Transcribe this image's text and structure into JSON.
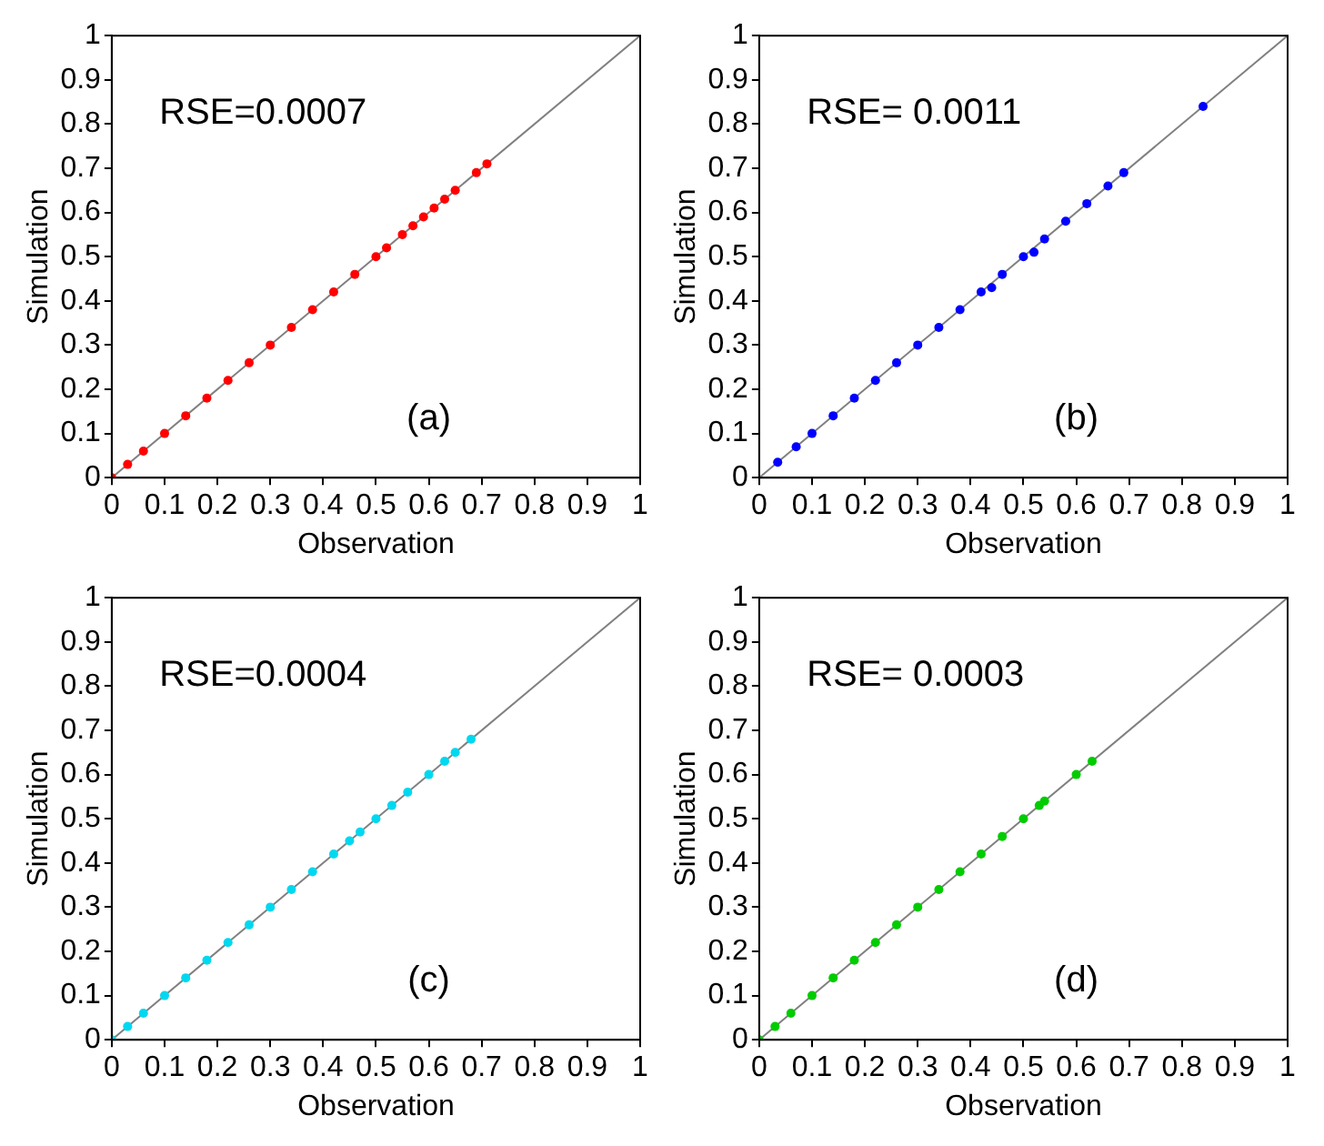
{
  "chart_data": [
    {
      "type": "scatter",
      "xlabel": "Observation",
      "ylabel": "Simulation",
      "annotations": [
        "RSE=0.0007",
        "(a)"
      ],
      "xlim": [
        0,
        1
      ],
      "ylim": [
        0,
        1
      ],
      "xticks": [
        0,
        0.1,
        0.2,
        0.3,
        0.4,
        0.5,
        0.6,
        0.7,
        0.8,
        0.9,
        1
      ],
      "yticks": [
        0,
        0.1,
        0.2,
        0.3,
        0.4,
        0.5,
        0.6,
        0.7,
        0.8,
        0.9,
        1
      ],
      "grid": false,
      "legend": false,
      "series": [
        {
          "type": "line",
          "marker": "none",
          "color": "#808080",
          "x": [
            0,
            1
          ],
          "values": [
            0,
            1
          ]
        },
        {
          "marker": "circle",
          "color": "#ff0000",
          "x": [
            0,
            0.03,
            0.06,
            0.1,
            0.14,
            0.18,
            0.22,
            0.26,
            0.3,
            0.34,
            0.38,
            0.42,
            0.46,
            0.5,
            0.52,
            0.55,
            0.57,
            0.59,
            0.61,
            0.63,
            0.65,
            0.69,
            0.71
          ],
          "values": [
            0,
            0.03,
            0.06,
            0.1,
            0.14,
            0.18,
            0.22,
            0.26,
            0.3,
            0.34,
            0.38,
            0.42,
            0.46,
            0.5,
            0.52,
            0.55,
            0.57,
            0.59,
            0.61,
            0.63,
            0.65,
            0.69,
            0.71
          ]
        }
      ]
    },
    {
      "type": "scatter",
      "xlabel": "Observation",
      "ylabel": "Simulation",
      "annotations": [
        "RSE= 0.0011",
        "(b)"
      ],
      "xlim": [
        0,
        1
      ],
      "ylim": [
        0,
        1
      ],
      "xticks": [
        0,
        0.1,
        0.2,
        0.3,
        0.4,
        0.5,
        0.6,
        0.7,
        0.8,
        0.9,
        1
      ],
      "yticks": [
        0,
        0.1,
        0.2,
        0.3,
        0.4,
        0.5,
        0.6,
        0.7,
        0.8,
        0.9,
        1
      ],
      "grid": false,
      "legend": false,
      "series": [
        {
          "type": "line",
          "marker": "none",
          "color": "#808080",
          "x": [
            0,
            1
          ],
          "values": [
            0,
            1
          ]
        },
        {
          "marker": "circle",
          "color": "#0000ff",
          "x": [
            0.035,
            0.07,
            0.1,
            0.14,
            0.18,
            0.22,
            0.26,
            0.3,
            0.34,
            0.38,
            0.42,
            0.44,
            0.46,
            0.5,
            0.52,
            0.54,
            0.58,
            0.62,
            0.66,
            0.69,
            0.84
          ],
          "values": [
            0.035,
            0.07,
            0.1,
            0.14,
            0.18,
            0.22,
            0.26,
            0.3,
            0.34,
            0.38,
            0.42,
            0.43,
            0.46,
            0.5,
            0.51,
            0.54,
            0.58,
            0.62,
            0.66,
            0.69,
            0.84
          ]
        }
      ]
    },
    {
      "type": "scatter",
      "xlabel": "Observation",
      "ylabel": "Simulation",
      "annotations": [
        "RSE=0.0004",
        "(c)"
      ],
      "xlim": [
        0,
        1
      ],
      "ylim": [
        0,
        1
      ],
      "xticks": [
        0,
        0.1,
        0.2,
        0.3,
        0.4,
        0.5,
        0.6,
        0.7,
        0.8,
        0.9,
        1
      ],
      "yticks": [
        0,
        0.1,
        0.2,
        0.3,
        0.4,
        0.5,
        0.6,
        0.7,
        0.8,
        0.9,
        1
      ],
      "grid": false,
      "legend": false,
      "series": [
        {
          "type": "line",
          "marker": "none",
          "color": "#808080",
          "x": [
            0,
            1
          ],
          "values": [
            0,
            1
          ]
        },
        {
          "marker": "circle",
          "color": "#00d8f0",
          "x": [
            0,
            0.03,
            0.06,
            0.1,
            0.14,
            0.18,
            0.22,
            0.26,
            0.3,
            0.34,
            0.38,
            0.42,
            0.45,
            0.47,
            0.5,
            0.53,
            0.56,
            0.6,
            0.63,
            0.65,
            0.68
          ],
          "values": [
            0,
            0.03,
            0.06,
            0.1,
            0.14,
            0.18,
            0.22,
            0.26,
            0.3,
            0.34,
            0.38,
            0.42,
            0.45,
            0.47,
            0.5,
            0.53,
            0.56,
            0.6,
            0.63,
            0.65,
            0.68
          ]
        }
      ]
    },
    {
      "type": "scatter",
      "xlabel": "Observation",
      "ylabel": "Simulation",
      "annotations": [
        "RSE= 0.0003",
        "(d)"
      ],
      "xlim": [
        0,
        1
      ],
      "ylim": [
        0,
        1
      ],
      "xticks": [
        0,
        0.1,
        0.2,
        0.3,
        0.4,
        0.5,
        0.6,
        0.7,
        0.8,
        0.9,
        1
      ],
      "yticks": [
        0,
        0.1,
        0.2,
        0.3,
        0.4,
        0.5,
        0.6,
        0.7,
        0.8,
        0.9,
        1
      ],
      "grid": false,
      "legend": false,
      "series": [
        {
          "type": "line",
          "marker": "none",
          "color": "#808080",
          "x": [
            0,
            1
          ],
          "values": [
            0,
            1
          ]
        },
        {
          "marker": "circle",
          "color": "#00cc00",
          "x": [
            0,
            0.03,
            0.06,
            0.1,
            0.14,
            0.18,
            0.22,
            0.26,
            0.3,
            0.34,
            0.38,
            0.42,
            0.46,
            0.5,
            0.53,
            0.54,
            0.6,
            0.63
          ],
          "values": [
            0,
            0.03,
            0.06,
            0.1,
            0.14,
            0.18,
            0.22,
            0.26,
            0.3,
            0.34,
            0.38,
            0.42,
            0.46,
            0.5,
            0.53,
            0.54,
            0.6,
            0.63
          ]
        }
      ]
    }
  ]
}
